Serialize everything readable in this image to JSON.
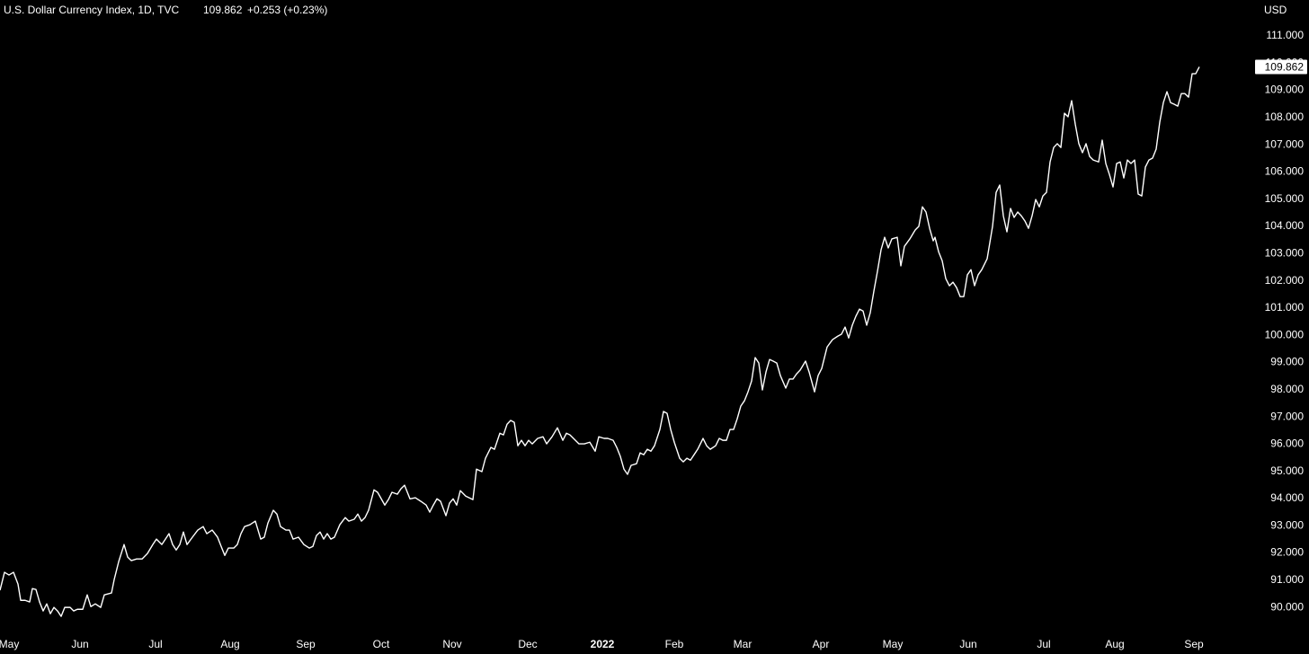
{
  "chart_data": {
    "type": "line",
    "title": "U.S. Dollar Currency Index, 1D, TVC",
    "change": "+0.253 (+0.23%)",
    "y_axis_label": "USD",
    "grid": false,
    "xlim": [
      0,
      348.75
    ],
    "xticks": [
      {
        "value": 2.5,
        "label": "May"
      },
      {
        "value": 22.25,
        "label": "Jun"
      },
      {
        "value": 43.25,
        "label": "Jul"
      },
      {
        "value": 64,
        "label": "Aug"
      },
      {
        "value": 85,
        "label": "Sep"
      },
      {
        "value": 106,
        "label": "Oct"
      },
      {
        "value": 125.75,
        "label": "Nov"
      },
      {
        "value": 146.75,
        "label": "Dec"
      },
      {
        "value": 167.5,
        "label": "2022"
      },
      {
        "value": 187.5,
        "label": "Feb"
      },
      {
        "value": 206.5,
        "label": "Mar"
      },
      {
        "value": 228.25,
        "label": "Apr"
      },
      {
        "value": 248.25,
        "label": "May"
      },
      {
        "value": 269.25,
        "label": "Jun"
      },
      {
        "value": 290.25,
        "label": "Jul"
      },
      {
        "value": 310,
        "label": "Aug"
      },
      {
        "value": 332,
        "label": "Sep"
      }
    ],
    "ylim": [
      89.08,
      112.32
    ],
    "yticks": [
      {
        "value": 90,
        "label": "90.000"
      },
      {
        "value": 91,
        "label": "91.000"
      },
      {
        "value": 92,
        "label": "92.000"
      },
      {
        "value": 93,
        "label": "93.000"
      },
      {
        "value": 94,
        "label": "94.000"
      },
      {
        "value": 95,
        "label": "95.000"
      },
      {
        "value": 96,
        "label": "96.000"
      },
      {
        "value": 97,
        "label": "97.000"
      },
      {
        "value": 98,
        "label": "98.000"
      },
      {
        "value": 99,
        "label": "99.000"
      },
      {
        "value": 100,
        "label": "100.000"
      },
      {
        "value": 101,
        "label": "101.000"
      },
      {
        "value": 102,
        "label": "102.000"
      },
      {
        "value": 103,
        "label": "103.000"
      },
      {
        "value": 104,
        "label": "104.000"
      },
      {
        "value": 105,
        "label": "105.000"
      },
      {
        "value": 106,
        "label": "106.000"
      },
      {
        "value": 107,
        "label": "107.000"
      },
      {
        "value": 108,
        "label": "108.000"
      },
      {
        "value": 109,
        "label": "109.000"
      },
      {
        "value": 110,
        "label": "110.000"
      },
      {
        "value": 111,
        "label": "111.000"
      }
    ],
    "x": [
      0,
      1.25,
      2.5,
      3.75,
      5,
      5.75,
      7,
      8.25,
      9,
      10,
      11,
      12,
      13,
      14,
      15,
      16,
      17,
      18,
      19.5,
      20.5,
      21.5,
      23,
      24.25,
      25.25,
      26.5,
      28,
      29,
      31,
      31.75,
      33,
      34.5,
      35.5,
      36.5,
      38,
      39.5,
      41,
      42.5,
      43.5,
      45,
      46,
      47,
      48,
      49,
      50,
      51,
      52,
      53.5,
      55,
      56.5,
      57.5,
      59,
      60.5,
      61.5,
      62.5,
      63.5,
      65,
      66,
      67,
      68,
      69.5,
      71,
      72.5,
      73.5,
      74.5,
      76,
      77,
      78,
      79.5,
      80.5,
      81.5,
      83,
      84.5,
      86,
      87,
      88,
      89,
      90,
      91,
      92,
      93,
      94.5,
      96,
      97,
      98.5,
      99.5,
      100.5,
      101.5,
      102.5,
      104,
      105,
      107,
      108,
      109,
      110.5,
      111.5,
      112.5,
      114,
      115.5,
      117,
      118.5,
      119.5,
      120.5,
      121.5,
      122.5,
      124,
      125,
      126,
      127,
      128,
      129.5,
      131.5,
      132.5,
      134,
      135,
      136.5,
      137.5,
      139,
      140,
      141,
      142,
      143,
      144,
      145,
      146,
      147,
      148,
      149.5,
      151,
      152,
      153.5,
      155,
      156.5,
      157.5,
      158.5,
      160,
      161,
      162.5,
      164,
      165.5,
      166.5,
      168,
      169,
      170.5,
      171.5,
      172.5,
      173.5,
      174.5,
      175.5,
      177,
      178,
      179,
      180,
      181,
      182,
      183.5,
      184.5,
      185.5,
      186.5,
      187.5,
      189,
      190,
      191,
      192,
      193,
      194,
      195.5,
      196.5,
      197.5,
      199,
      200,
      201,
      202,
      203,
      204,
      205,
      206,
      207,
      208,
      209,
      210,
      211,
      212,
      213,
      214,
      215,
      216,
      217,
      218.5,
      219.5,
      220.5,
      221.5,
      222.5,
      224,
      225,
      226.5,
      227.5,
      228.5,
      230,
      231.5,
      233,
      234,
      235,
      236,
      237,
      238,
      239,
      240,
      241,
      242,
      243,
      244,
      245,
      246,
      247,
      248,
      249.5,
      250.5,
      251.5,
      253,
      254.5,
      255.5,
      256.5,
      257.5,
      258.5,
      259.5,
      260,
      261,
      262,
      263,
      264,
      265,
      266,
      267,
      268,
      269,
      270,
      271,
      272,
      273,
      274.5,
      276,
      277,
      278,
      279,
      280,
      281,
      282,
      283,
      284,
      285,
      286,
      287,
      288,
      289,
      290,
      291,
      292,
      293,
      294,
      295,
      296,
      297,
      298,
      299,
      300,
      301,
      302,
      303,
      304,
      305.5,
      306.5,
      307.5,
      308.5,
      309.5,
      310.5,
      311.5,
      312.5,
      313.5,
      314.5,
      315.5,
      316.5,
      317.5,
      318.5,
      319.5,
      320.5,
      321.5,
      322.5,
      323.5,
      324.5,
      325.5,
      326.5,
      327.5,
      328.5,
      329.5,
      330.5,
      331.5,
      332.5,
      333.5
    ],
    "series": [
      {
        "color": "#ffffff",
        "values": [
          90.63,
          91.29,
          91.19,
          91.29,
          90.86,
          90.26,
          90.26,
          90.2,
          90.69,
          90.66,
          90.2,
          89.87,
          90.13,
          89.77,
          90,
          89.87,
          89.67,
          90,
          90,
          89.87,
          89.93,
          89.93,
          90.46,
          90.03,
          90.13,
          90,
          90.46,
          90.53,
          91.02,
          91.68,
          92.31,
          91.85,
          91.72,
          91.78,
          91.78,
          91.98,
          92.31,
          92.51,
          92.31,
          92.51,
          92.71,
          92.31,
          92.11,
          92.31,
          92.77,
          92.31,
          92.58,
          92.84,
          92.97,
          92.71,
          92.84,
          92.58,
          92.24,
          91.91,
          92.18,
          92.18,
          92.31,
          92.71,
          92.97,
          93.04,
          93.17,
          92.51,
          92.58,
          93.1,
          93.57,
          93.43,
          92.97,
          92.84,
          92.84,
          92.51,
          92.58,
          92.31,
          92.18,
          92.24,
          92.64,
          92.77,
          92.51,
          92.71,
          92.51,
          92.58,
          93.04,
          93.3,
          93.17,
          93.24,
          93.43,
          93.17,
          93.3,
          93.57,
          94.32,
          94.23,
          93.76,
          93.96,
          94.23,
          94.16,
          94.36,
          94.49,
          93.99,
          94.03,
          93.9,
          93.76,
          93.5,
          93.76,
          93.99,
          93.9,
          93.37,
          93.83,
          93.99,
          93.76,
          94.29,
          94.09,
          93.96,
          95.08,
          94.99,
          95.48,
          95.88,
          95.81,
          96.4,
          96.34,
          96.73,
          96.87,
          96.8,
          95.94,
          96.14,
          95.94,
          96.14,
          96.01,
          96.21,
          96.27,
          96.01,
          96.27,
          96.6,
          96.14,
          96.4,
          96.34,
          96.14,
          96.01,
          96.01,
          96.07,
          95.74,
          96.27,
          96.21,
          96.21,
          96.14,
          95.88,
          95.55,
          95.08,
          94.89,
          95.22,
          95.28,
          95.68,
          95.61,
          95.81,
          95.74,
          95.94,
          96.54,
          97.2,
          97.13,
          96.54,
          96.07,
          95.48,
          95.35,
          95.48,
          95.41,
          95.61,
          95.81,
          96.21,
          95.94,
          95.81,
          95.94,
          96.21,
          96.14,
          96.14,
          96.54,
          96.54,
          96.93,
          97.4,
          97.59,
          97.92,
          98.32,
          99.18,
          98.98,
          97.99,
          98.65,
          99.11,
          99.05,
          98.98,
          98.52,
          98.06,
          98.39,
          98.39,
          98.58,
          98.72,
          99.05,
          98.65,
          97.92,
          98.52,
          98.78,
          99.57,
          99.84,
          99.97,
          100.04,
          100.3,
          99.9,
          100.37,
          100.7,
          100.96,
          100.89,
          100.37,
          100.83,
          101.62,
          102.35,
          103.14,
          103.6,
          103.21,
          103.54,
          103.6,
          102.55,
          103.27,
          103.54,
          103.87,
          104,
          104.72,
          104.53,
          103.93,
          103.47,
          103.6,
          103.07,
          102.74,
          102.08,
          101.82,
          101.95,
          101.75,
          101.42,
          101.42,
          102.22,
          102.41,
          101.82,
          102.22,
          102.41,
          102.81,
          104,
          105.25,
          105.52,
          104.39,
          103.8,
          104.66,
          104.33,
          104.53,
          104.39,
          104.2,
          103.93,
          104.39,
          104.99,
          104.72,
          105.12,
          105.25,
          106.37,
          106.9,
          107.04,
          106.9,
          108.16,
          108.03,
          108.62,
          107.76,
          107.04,
          106.71,
          107.04,
          106.57,
          106.44,
          106.37,
          107.17,
          106.31,
          105.91,
          105.45,
          106.31,
          106.37,
          105.78,
          106.44,
          106.31,
          106.44,
          105.19,
          105.12,
          106.18,
          106.44,
          106.51,
          106.84,
          107.83,
          108.55,
          108.95,
          108.55,
          108.49,
          108.42,
          108.88,
          108.88,
          108.75,
          109.61,
          109.61,
          109.862
        ]
      }
    ]
  }
}
